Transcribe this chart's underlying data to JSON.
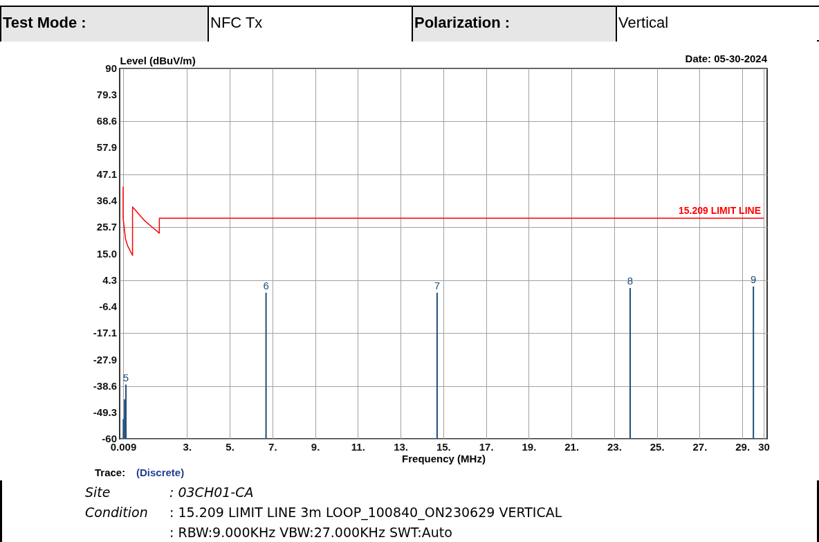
{
  "chart_data": {
    "type": "bar",
    "xlabel": "Frequency (MHz)",
    "ylabel": "Level (dBuV/m)",
    "annotations": [
      "Test Mode :",
      "NFC Tx",
      "Polarization :",
      "Vertical",
      "Date: 05-30-2024",
      "Trace:",
      "(Discrete)",
      "Site",
      ": 03CH01-CA",
      "Condition",
      ": 15.209 LIMIT LINE 3m LOOP_100840_ON230629 VERTICAL",
      ": RBW:9.000KHz VBW:27.000KHz SWT:Auto",
      {
        "text": "5",
        "x": 0.14,
        "y": -38
      },
      {
        "text": "6",
        "x": 6.7,
        "y": -0.8
      },
      {
        "text": "7",
        "x": 14.71,
        "y": -0.8
      },
      {
        "text": "8",
        "x": 23.75,
        "y": 1.1
      },
      {
        "text": "9",
        "x": 29.52,
        "y": 1.7
      }
    ],
    "xlim": [
      0.009,
      30
    ],
    "ylim": [
      -60,
      90
    ],
    "xticks": [
      0.009,
      {
        "value": 3,
        "label": "3."
      },
      {
        "value": 5,
        "label": "5."
      },
      {
        "value": 7,
        "label": "7."
      },
      {
        "value": 9,
        "label": "9."
      },
      {
        "value": 11,
        "label": "11."
      },
      {
        "value": 13,
        "label": "13."
      },
      {
        "value": 15,
        "label": "15."
      },
      {
        "value": 17,
        "label": "17."
      },
      {
        "value": 19,
        "label": "19."
      },
      {
        "value": 21,
        "label": "21."
      },
      {
        "value": 23,
        "label": "23."
      },
      {
        "value": 25,
        "label": "25."
      },
      {
        "value": 27,
        "label": "27."
      },
      {
        "value": 29,
        "label": "29."
      },
      30
    ],
    "yticks": [
      90,
      79.3,
      68.6,
      57.9,
      47.1,
      36.4,
      25.7,
      {
        "value": 15,
        "label": "15.0"
      },
      4.3,
      -6.4,
      -17.1,
      -27.9,
      -38.6,
      -49.3,
      -60
    ],
    "grid": true,
    "series": [
      {
        "color": "#1f4e79",
        "x": [
          0.02,
          0.08,
          0.14,
          6.7,
          14.71,
          23.75,
          29.52
        ],
        "base": [
          -60,
          -60,
          -60,
          -60,
          -60,
          -60,
          -60
        ],
        "values": [
          8,
          16,
          22,
          59.2,
          59.2,
          61.1,
          61.7
        ]
      },
      {
        "type": "line",
        "name": "15.209 LIMIT LINE",
        "color": "#ff0000",
        "x": [
          0.009,
          0.009,
          0.12,
          0.22,
          0.45,
          0.45,
          0.77,
          1.0,
          1.4,
          1.705,
          1.705,
          30
        ],
        "values": [
          42.1,
          29.4,
          21.0,
          18.2,
          14.3,
          33.9,
          30.8,
          28.5,
          25.5,
          23.3,
          29.4,
          29.4
        ]
      }
    ]
  }
}
